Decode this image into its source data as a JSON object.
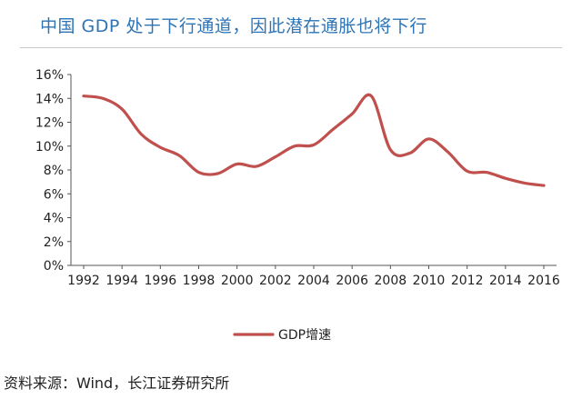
{
  "title": "中国 GDP 处于下行通道，因此潜在通胀也将下行",
  "source": "资料来源：Wind，长江证券研究所",
  "colors": {
    "title": "#2e74b5",
    "series": "#c0504d",
    "axis": "#555555"
  },
  "chart_data": {
    "type": "line",
    "title": "",
    "xlabel": "",
    "ylabel": "",
    "x": [
      1992,
      1993,
      1994,
      1995,
      1996,
      1997,
      1998,
      1999,
      2000,
      2001,
      2002,
      2003,
      2004,
      2005,
      2006,
      2007,
      2008,
      2009,
      2010,
      2011,
      2012,
      2013,
      2014,
      2015,
      2016
    ],
    "series": [
      {
        "name": "GDP增速",
        "values": [
          14.2,
          14.0,
          13.1,
          11.0,
          9.9,
          9.2,
          7.8,
          7.7,
          8.5,
          8.3,
          9.1,
          10.0,
          10.1,
          11.4,
          12.7,
          14.2,
          9.7,
          9.4,
          10.6,
          9.5,
          7.9,
          7.8,
          7.3,
          6.9,
          6.7
        ]
      }
    ],
    "ylim": [
      0,
      16
    ],
    "yticks": [
      "0%",
      "2%",
      "4%",
      "6%",
      "8%",
      "10%",
      "12%",
      "14%",
      "16%"
    ],
    "xticks": [
      "1992",
      "1994",
      "1996",
      "1998",
      "2000",
      "2002",
      "2004",
      "2006",
      "2008",
      "2010",
      "2012",
      "2014",
      "2016"
    ],
    "legend": "bottom",
    "grid": false
  }
}
